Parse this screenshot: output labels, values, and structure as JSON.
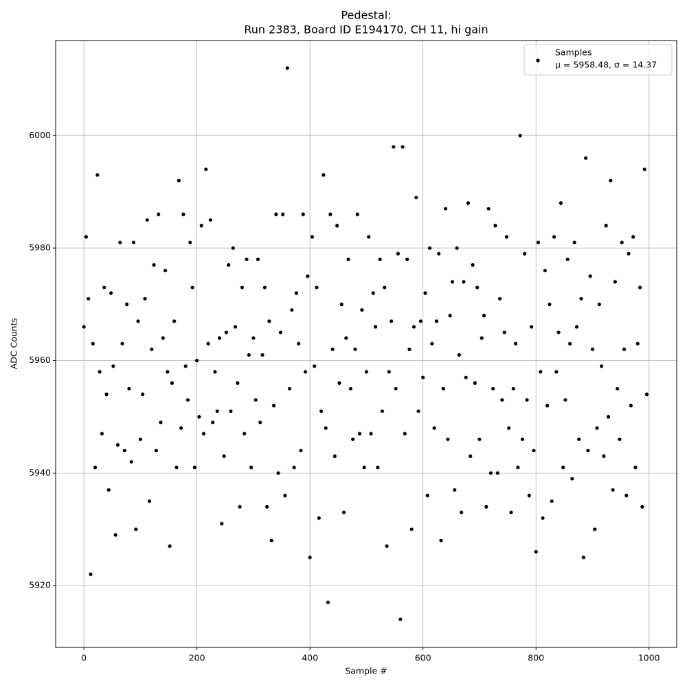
{
  "chart_data": {
    "type": "scatter",
    "title": "Pedestal:",
    "subtitle": "Run 2383, Board ID E194170, CH 11, hi gain",
    "xlabel": "Sample #",
    "ylabel": "ADC Counts",
    "xlim": [
      -49.95,
      1048.95
    ],
    "ylim": [
      5909,
      6016.9
    ],
    "xticks": [
      0,
      200,
      400,
      600,
      800,
      1000
    ],
    "yticks": [
      5920,
      5940,
      5960,
      5980,
      6000
    ],
    "grid": true,
    "legend_position": "upper-right",
    "annotation": "μ = 5958.48, σ = 14.37",
    "x": [
      0,
      4,
      8,
      12,
      16,
      20,
      24,
      28,
      32,
      36,
      40,
      44,
      48,
      52,
      56,
      60,
      64,
      68,
      72,
      76,
      80,
      84,
      88,
      92,
      96,
      100,
      104,
      108,
      112,
      116,
      120,
      124,
      128,
      132,
      136,
      140,
      144,
      148,
      152,
      156,
      160,
      164,
      168,
      172,
      176,
      180,
      184,
      188,
      192,
      196,
      200,
      204,
      208,
      212,
      216,
      220,
      224,
      228,
      232,
      236,
      240,
      244,
      248,
      252,
      256,
      260,
      264,
      268,
      272,
      276,
      280,
      284,
      288,
      292,
      296,
      300,
      304,
      308,
      312,
      316,
      320,
      324,
      328,
      332,
      336,
      340,
      344,
      348,
      352,
      356,
      360,
      364,
      368,
      372,
      376,
      380,
      384,
      388,
      392,
      396,
      400,
      404,
      408,
      412,
      416,
      420,
      424,
      428,
      432,
      436,
      440,
      444,
      448,
      452,
      456,
      460,
      464,
      468,
      472,
      476,
      480,
      484,
      488,
      492,
      496,
      500,
      504,
      508,
      512,
      516,
      520,
      524,
      528,
      532,
      536,
      540,
      544,
      548,
      552,
      556,
      560,
      564,
      568,
      572,
      576,
      580,
      584,
      588,
      592,
      596,
      600,
      604,
      608,
      612,
      616,
      620,
      624,
      628,
      632,
      636,
      640,
      644,
      648,
      652,
      656,
      660,
      664,
      668,
      672,
      676,
      680,
      684,
      688,
      692,
      696,
      700,
      704,
      708,
      712,
      716,
      720,
      724,
      728,
      732,
      736,
      740,
      744,
      748,
      752,
      756,
      760,
      764,
      768,
      772,
      776,
      780,
      784,
      788,
      792,
      796,
      800,
      804,
      808,
      812,
      816,
      820,
      824,
      828,
      832,
      836,
      840,
      844,
      848,
      852,
      856,
      860,
      864,
      868,
      872,
      876,
      880,
      884,
      888,
      892,
      896,
      900,
      904,
      908,
      912,
      916,
      920,
      924,
      928,
      932,
      936,
      940,
      944,
      948,
      952,
      956,
      960,
      964,
      968,
      972,
      976,
      980,
      984,
      988,
      992,
      996
    ],
    "series": [
      {
        "name": "Samples",
        "color": "#000000",
        "values": [
          5966,
          5982,
          5971,
          5922,
          5963,
          5941,
          5993,
          5958,
          5947,
          5973,
          5954,
          5937,
          5972,
          5959,
          5929,
          5945,
          5981,
          5963,
          5944,
          5970,
          5955,
          5942,
          5981,
          5930,
          5967,
          5946,
          5954,
          5971,
          5985,
          5935,
          5962,
          5977,
          5944,
          5986,
          5949,
          5964,
          5976,
          5958,
          5927,
          5956,
          5967,
          5941,
          5992,
          5948,
          5986,
          5959,
          5953,
          5981,
          5973,
          5941,
          5960,
          5950,
          5984,
          5947,
          5994,
          5963,
          5985,
          5949,
          5958,
          5951,
          5964,
          5931,
          5943,
          5965,
          5977,
          5951,
          5980,
          5966,
          5956,
          5934,
          5973,
          5947,
          5978,
          5961,
          5941,
          5964,
          5953,
          5978,
          5949,
          5961,
          5973,
          5934,
          5967,
          5928,
          5952,
          5986,
          5940,
          5965,
          5986,
          5936,
          6012,
          5955,
          5969,
          5941,
          5972,
          5963,
          5944,
          5986,
          5958,
          5975,
          5925,
          5982,
          5959,
          5973,
          5932,
          5951,
          5993,
          5948,
          5917,
          5986,
          5962,
          5943,
          5984,
          5956,
          5970,
          5933,
          5964,
          5978,
          5955,
          5946,
          5962,
          5986,
          5947,
          5969,
          5941,
          5958,
          5982,
          5947,
          5972,
          5966,
          5941,
          5978,
          5951,
          5973,
          5927,
          5958,
          5967,
          5998,
          5955,
          5979,
          5914,
          5998,
          5947,
          5978,
          5962,
          5930,
          5966,
          5989,
          5951,
          5967,
          5957,
          5972,
          5936,
          5980,
          5963,
          5948,
          5967,
          5979,
          5928,
          5955,
          5987,
          5946,
          5968,
          5974,
          5937,
          5980,
          5961,
          5933,
          5974,
          5957,
          5988,
          5943,
          5977,
          5956,
          5973,
          5946,
          5964,
          5968,
          5934,
          5987,
          5940,
          5955,
          5984,
          5940,
          5971,
          5953,
          5965,
          5982,
          5948,
          5933,
          5955,
          5963,
          5941,
          6000,
          5946,
          5979,
          5953,
          5936,
          5966,
          5944,
          5926,
          5981,
          5958,
          5932,
          5976,
          5952,
          5970,
          5935,
          5982,
          5958,
          5965,
          5988,
          5941,
          5953,
          5978,
          5963,
          5939,
          5981,
          5966,
          5946,
          5971,
          5925,
          5996,
          5944,
          5975,
          5962,
          5930,
          5948,
          5970,
          5959,
          5943,
          5984,
          5950,
          5992,
          5937,
          5974,
          5955,
          5946,
          5981,
          5962,
          5936,
          5979,
          5952,
          5982,
          5941,
          5963,
          5973,
          5934,
          5994,
          5954
        ]
      }
    ]
  }
}
